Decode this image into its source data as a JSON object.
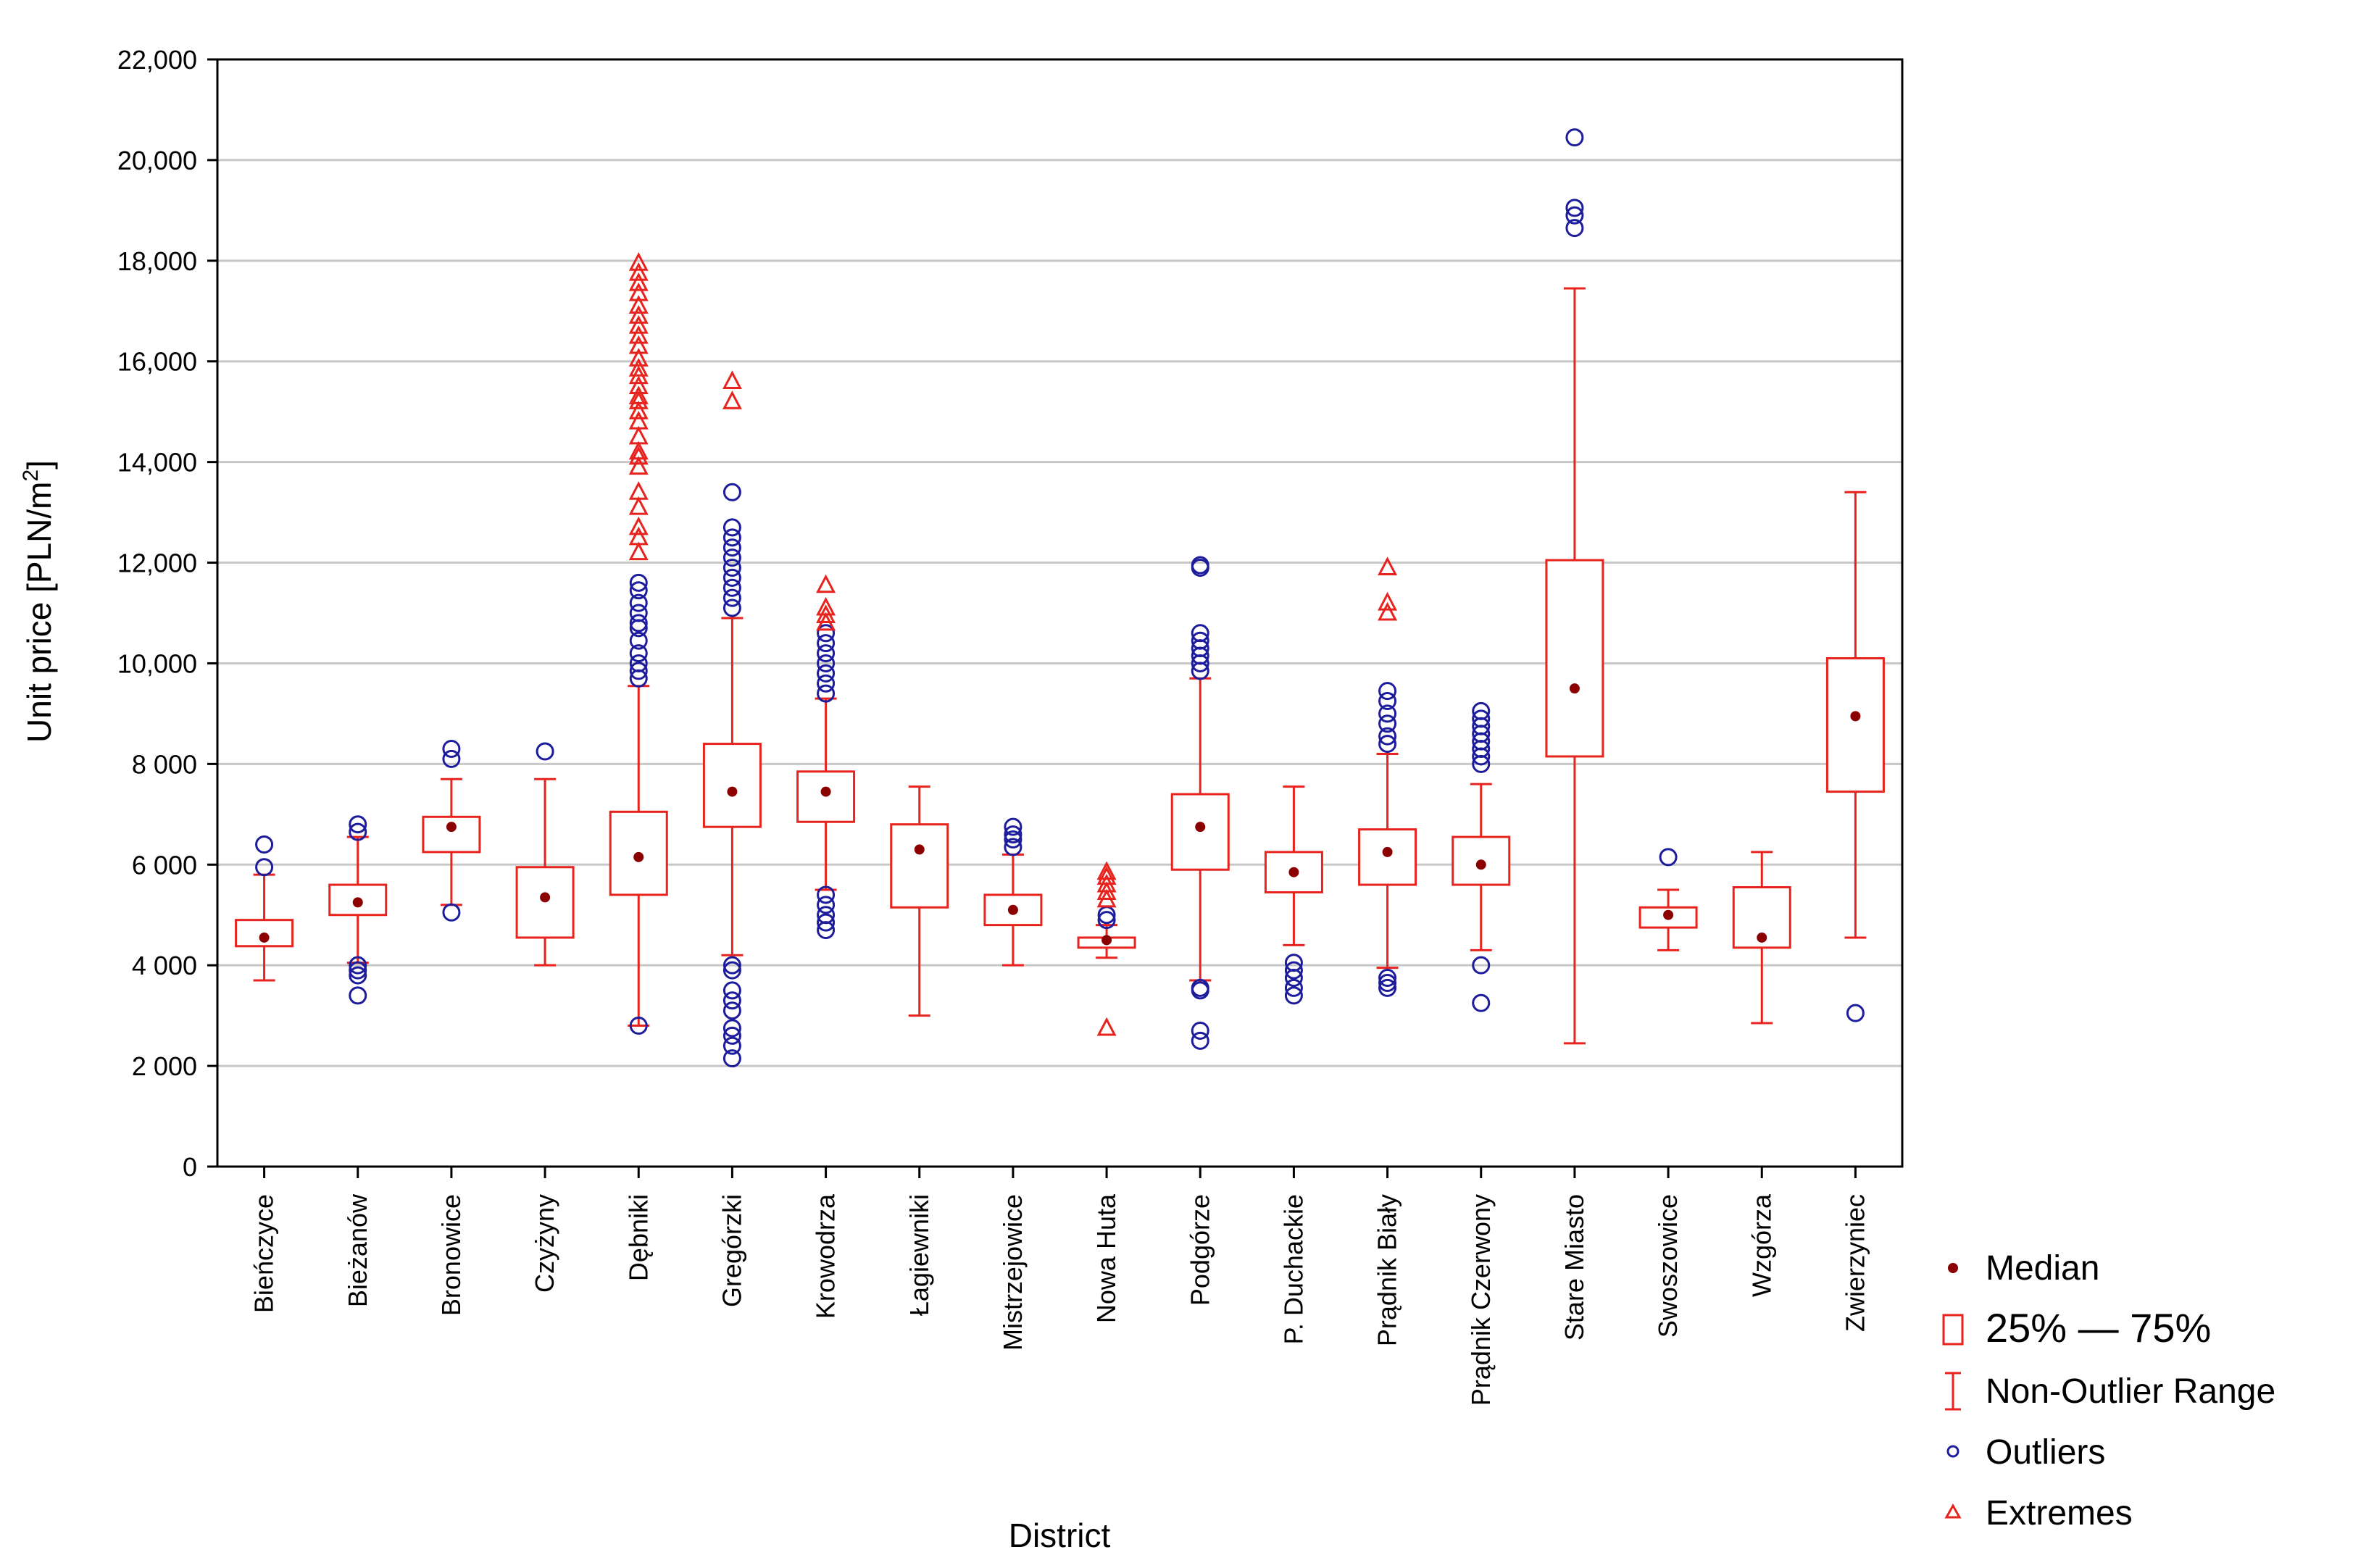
{
  "chart_data": {
    "type": "boxplot",
    "xlabel": "District",
    "ylabel_main": "Unit price [PLN/m",
    "ylabel_sup": "2",
    "ylabel_end": "]",
    "ylim": [
      0,
      22000
    ],
    "y_ticks": [
      {
        "value": 0,
        "label": "0"
      },
      {
        "value": 2000,
        "label": "2 000"
      },
      {
        "value": 4000,
        "label": "4 000"
      },
      {
        "value": 6000,
        "label": "6 000"
      },
      {
        "value": 8000,
        "label": "8 000"
      },
      {
        "value": 10000,
        "label": "10,000"
      },
      {
        "value": 12000,
        "label": "12,000"
      },
      {
        "value": 14000,
        "label": "14,000"
      },
      {
        "value": 16000,
        "label": "16,000"
      },
      {
        "value": 18000,
        "label": "18,000"
      },
      {
        "value": 20000,
        "label": "20,000"
      },
      {
        "value": 22000,
        "label": "22,000"
      }
    ],
    "colors": {
      "box": "#e8221c",
      "median": "#8b0000",
      "outlier": "#1c1c9c",
      "grid": "#c8c8c8"
    },
    "categories": [
      {
        "name": "Bieńczyce",
        "median": 4550,
        "q1": 4380,
        "q3": 4900,
        "whisker_low": 3700,
        "whisker_high": 5800,
        "outliers": [
          5950,
          6400
        ],
        "extremes": []
      },
      {
        "name": "Bieżanów",
        "median": 5250,
        "q1": 5000,
        "q3": 5600,
        "whisker_low": 4050,
        "whisker_high": 6550,
        "outliers": [
          3400,
          3800,
          3900,
          4000,
          6650,
          6800
        ],
        "extremes": []
      },
      {
        "name": "Bronowice",
        "median": 6750,
        "q1": 6250,
        "q3": 6950,
        "whisker_low": 5200,
        "whisker_high": 7700,
        "outliers": [
          5050,
          8100,
          8300
        ],
        "extremes": []
      },
      {
        "name": "Czyżyny",
        "median": 5350,
        "q1": 4550,
        "q3": 5950,
        "whisker_low": 4000,
        "whisker_high": 7700,
        "outliers": [
          8250
        ],
        "extremes": []
      },
      {
        "name": "Dębniki",
        "median": 6150,
        "q1": 5400,
        "q3": 7050,
        "whisker_low": 2800,
        "whisker_high": 9550,
        "outliers": [
          2800,
          9700,
          9850,
          10000,
          10200,
          10450,
          10700,
          10800,
          11000,
          11200,
          11450,
          11600
        ],
        "extremes": [
          12200,
          12500,
          12700,
          13100,
          13400,
          13900,
          14100,
          14200,
          14500,
          14800,
          15000,
          15200,
          15300,
          15500,
          15700,
          15850,
          16050,
          16300,
          16500,
          16700,
          16900,
          17100,
          17350,
          17550,
          17750,
          17950
        ]
      },
      {
        "name": "Gregórzki",
        "median": 7450,
        "q1": 6750,
        "q3": 8400,
        "whisker_low": 4200,
        "whisker_high": 10900,
        "outliers": [
          2150,
          2400,
          2600,
          2750,
          3100,
          3300,
          3500,
          3900,
          4000,
          11100,
          11300,
          11500,
          11700,
          11900,
          12100,
          12300,
          12500,
          12700,
          13400
        ],
        "extremes": [
          15200,
          15600
        ]
      },
      {
        "name": "Krowodrza",
        "median": 7450,
        "q1": 6850,
        "q3": 7850,
        "whisker_low": 5500,
        "whisker_high": 9300,
        "outliers": [
          4700,
          4850,
          5000,
          5200,
          5400,
          9400,
          9600,
          9800,
          10000,
          10200,
          10400,
          10600
        ],
        "extremes": [
          10800,
          10950,
          11100,
          11550
        ]
      },
      {
        "name": "Łagiewniki",
        "median": 6300,
        "q1": 5150,
        "q3": 6800,
        "whisker_low": 3000,
        "whisker_high": 7550,
        "outliers": [],
        "extremes": []
      },
      {
        "name": "Mistrzejowice",
        "median": 5100,
        "q1": 4800,
        "q3": 5400,
        "whisker_low": 4000,
        "whisker_high": 6200,
        "outliers": [
          6350,
          6500,
          6600,
          6750
        ],
        "extremes": []
      },
      {
        "name": "Nowa Huta",
        "median": 4500,
        "q1": 4350,
        "q3": 4550,
        "whisker_low": 4150,
        "whisker_high": 4800,
        "outliers": [
          4900,
          5000
        ],
        "extremes": [
          2750,
          5300,
          5450,
          5600,
          5750,
          5850
        ]
      },
      {
        "name": "Podgórze",
        "median": 6750,
        "q1": 5900,
        "q3": 7400,
        "whisker_low": 3700,
        "whisker_high": 9700,
        "outliers": [
          2500,
          2700,
          3500,
          3550,
          9850,
          10000,
          10150,
          10300,
          10450,
          10600,
          11900,
          11950
        ],
        "extremes": []
      },
      {
        "name": "P. Duchackie",
        "median": 5850,
        "q1": 5450,
        "q3": 6250,
        "whisker_low": 4400,
        "whisker_high": 7550,
        "outliers": [
          3400,
          3550,
          3750,
          3900,
          4050
        ],
        "extremes": []
      },
      {
        "name": "Prądnik Biały",
        "median": 6250,
        "q1": 5600,
        "q3": 6700,
        "whisker_low": 3950,
        "whisker_high": 8200,
        "outliers": [
          3550,
          3650,
          3750,
          8400,
          8550,
          8800,
          9000,
          9250,
          9450
        ],
        "extremes": [
          11000,
          11200,
          11900
        ]
      },
      {
        "name": "Prądnik Czerwony",
        "median": 6000,
        "q1": 5600,
        "q3": 6550,
        "whisker_low": 4300,
        "whisker_high": 7600,
        "outliers": [
          3250,
          4000,
          8000,
          8150,
          8300,
          8450,
          8600,
          8750,
          8900,
          9050
        ],
        "extremes": []
      },
      {
        "name": "Stare Miasto",
        "median": 9500,
        "q1": 8150,
        "q3": 12050,
        "whisker_low": 2450,
        "whisker_high": 17450,
        "outliers": [
          18650,
          18900,
          19050,
          20450
        ],
        "extremes": []
      },
      {
        "name": "Swoszowice",
        "median": 5000,
        "q1": 4750,
        "q3": 5150,
        "whisker_low": 4300,
        "whisker_high": 5500,
        "outliers": [
          6150
        ],
        "extremes": []
      },
      {
        "name": "Wzgórza",
        "median": 4550,
        "q1": 4350,
        "q3": 5550,
        "whisker_low": 2850,
        "whisker_high": 6250,
        "outliers": [],
        "extremes": []
      },
      {
        "name": "Zwierzyniec",
        "median": 8950,
        "q1": 7450,
        "q3": 10100,
        "whisker_low": 4550,
        "whisker_high": 13400,
        "outliers": [
          3050
        ],
        "extremes": []
      }
    ],
    "legend": {
      "placement": "bottom-right",
      "median": "Median",
      "box": "25% — 75%",
      "whisker": "Non-Outlier Range",
      "outliers": "Outliers",
      "extremes": "Extremes"
    }
  }
}
